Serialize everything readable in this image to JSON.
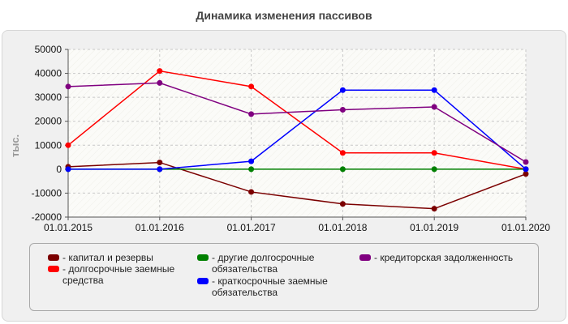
{
  "chart_data": {
    "type": "line",
    "title": "Динамика изменения пассивов",
    "ylabel": "тыс.",
    "xlabel": "",
    "categories": [
      "01.01.2015",
      "01.01.2016",
      "01.01.2017",
      "01.01.2018",
      "01.01.2019",
      "01.01.2020"
    ],
    "yticks": [
      "-20000",
      "-10000",
      "0",
      "10000",
      "20000",
      "30000",
      "40000",
      "50000"
    ],
    "ylim": [
      -20000,
      50000
    ],
    "grid": true,
    "legend_position": "bottom",
    "series": [
      {
        "name": "- капитал и резервы",
        "color": "#7b0000",
        "values": [
          1000,
          2800,
          -9500,
          -14500,
          -16500,
          -2000
        ]
      },
      {
        "name": "- долгосрочные заемные средства",
        "color": "#ff0000",
        "values": [
          10000,
          41000,
          34500,
          6800,
          6800,
          0
        ]
      },
      {
        "name": "- другие долгосрочные обязательства",
        "color": "#008000",
        "values": [
          0,
          0,
          0,
          0,
          0,
          0
        ]
      },
      {
        "name": "- краткосрочные заемные обязательства",
        "color": "#0000ff",
        "values": [
          0,
          0,
          3300,
          33000,
          33000,
          0
        ]
      },
      {
        "name": "- кредиторская задолженность",
        "color": "#800080",
        "values": [
          34500,
          36000,
          23000,
          24800,
          26000,
          3000
        ]
      }
    ]
  }
}
